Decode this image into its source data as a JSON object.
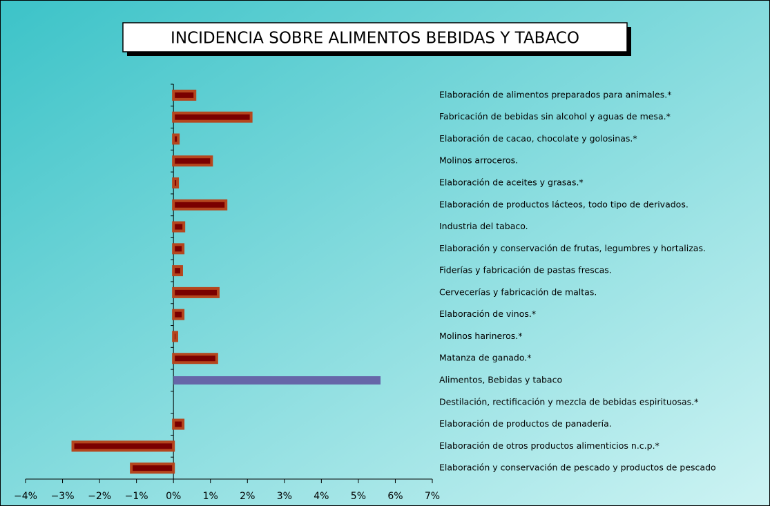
{
  "chart_data": {
    "type": "barh",
    "title": "INCIDENCIA SOBRE ALIMENTOS BEBIDAS Y TABACO",
    "categories": [
      "Elaboración de alimentos preparados para animales.*",
      "Fabricación de bebidas sin alcohol y aguas de mesa.*",
      "Elaboración de cacao, chocolate y golosinas.*",
      "Molinos arroceros.",
      "Elaboración de aceites y grasas.*",
      "Elaboración de productos lácteos, todo tipo de derivados.",
      "Industria del tabaco.",
      "Elaboración y conservación de frutas, legumbres y hortalizas.",
      "Fiderías y fabricación de pastas frescas.",
      "Cervecerías y fabricación de maltas.",
      "Elaboración de vinos.*",
      "Molinos harineros.*",
      "Matanza de ganado.*",
      "Alimentos, Bebidas y tabaco",
      "Destilación, rectificación y mezcla de bebidas espirituosas.*",
      "Elaboración de productos de panadería.",
      "Elaboración de otros productos alimenticios n.c.p.*",
      "Elaboración y conservación de pescado y productos de pescado"
    ],
    "values": [
      0.58,
      2.1,
      0.13,
      1.03,
      0.11,
      1.42,
      0.28,
      0.26,
      0.22,
      1.21,
      0.26,
      0.09,
      1.17,
      5.6,
      0,
      0.26,
      -2.72,
      -1.14
    ],
    "colors": [
      "#7a0000",
      "#7a0000",
      "#7a0000",
      "#7a0000",
      "#7a0000",
      "#7a0000",
      "#7a0000",
      "#7a0000",
      "#7a0000",
      "#7a0000",
      "#7a0000",
      "#7a0000",
      "#7a0000",
      "#6666a8",
      "#7a0000",
      "#7a0000",
      "#7a0000",
      "#7a0000"
    ],
    "edge_color": "#b5461e",
    "xlim": [
      -4,
      7
    ],
    "xticks": [
      {
        "value": -4,
        "label": "−4%"
      },
      {
        "value": -3,
        "label": "−3%"
      },
      {
        "value": -2,
        "label": "−2%"
      },
      {
        "value": -1,
        "label": "−1%"
      },
      {
        "value": 0,
        "label": "0%"
      },
      {
        "value": 1,
        "label": "1%"
      },
      {
        "value": 2,
        "label": "2%"
      },
      {
        "value": 3,
        "label": "3%"
      },
      {
        "value": 4,
        "label": "4%"
      },
      {
        "value": 5,
        "label": "5%"
      },
      {
        "value": 6,
        "label": "6%"
      },
      {
        "value": 7,
        "label": "7%"
      }
    ],
    "grid": false
  }
}
